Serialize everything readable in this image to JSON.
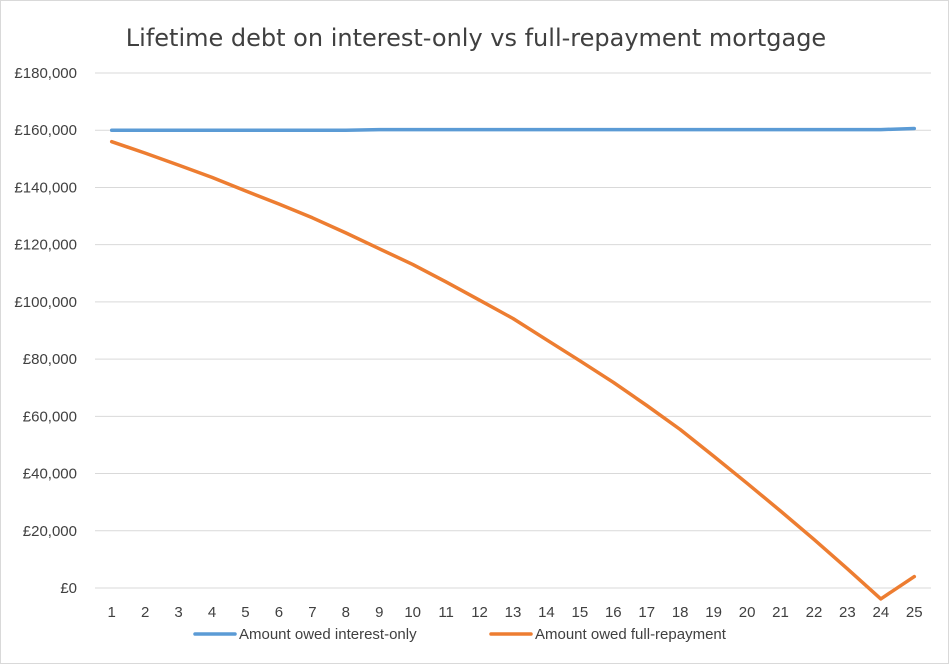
{
  "chart_data": {
    "type": "line",
    "title": "Lifetime debt on interest-only vs full-repayment mortgage",
    "xlabel": "",
    "ylabel": "",
    "x": [
      1,
      2,
      3,
      4,
      5,
      6,
      7,
      8,
      9,
      10,
      11,
      12,
      13,
      14,
      15,
      16,
      17,
      18,
      19,
      20,
      21,
      22,
      23,
      24,
      25
    ],
    "ylim": [
      0,
      180000
    ],
    "y_ticks": [
      0,
      20000,
      40000,
      60000,
      80000,
      100000,
      120000,
      140000,
      160000,
      180000
    ],
    "y_tick_labels": [
      "£0",
      "£20,000",
      "£40,000",
      "£60,000",
      "£80,000",
      "£100,000",
      "£120,000",
      "£140,000",
      "£160,000",
      "£180,000"
    ],
    "grid": true,
    "legend_position": "bottom",
    "series": [
      {
        "name": "Amount owed interest-only",
        "color": "#5b9bd5",
        "values": [
          160000,
          160000,
          160000,
          160000,
          160000,
          160000,
          160000,
          160000,
          160200,
          160200,
          160200,
          160200,
          160200,
          160200,
          160200,
          160200,
          160200,
          160200,
          160200,
          160200,
          160200,
          160200,
          160200,
          160200,
          160600
        ]
      },
      {
        "name": "Amount owed full-repayment",
        "color": "#ed7d31",
        "values": [
          156000,
          152000,
          147800,
          143500,
          138800,
          134200,
          129400,
          124100,
          118600,
          113100,
          107000,
          100600,
          94200,
          86800,
          79400,
          71900,
          63800,
          55400,
          46100,
          36600,
          26900,
          17000,
          6700,
          -3800,
          4000
        ]
      }
    ]
  }
}
